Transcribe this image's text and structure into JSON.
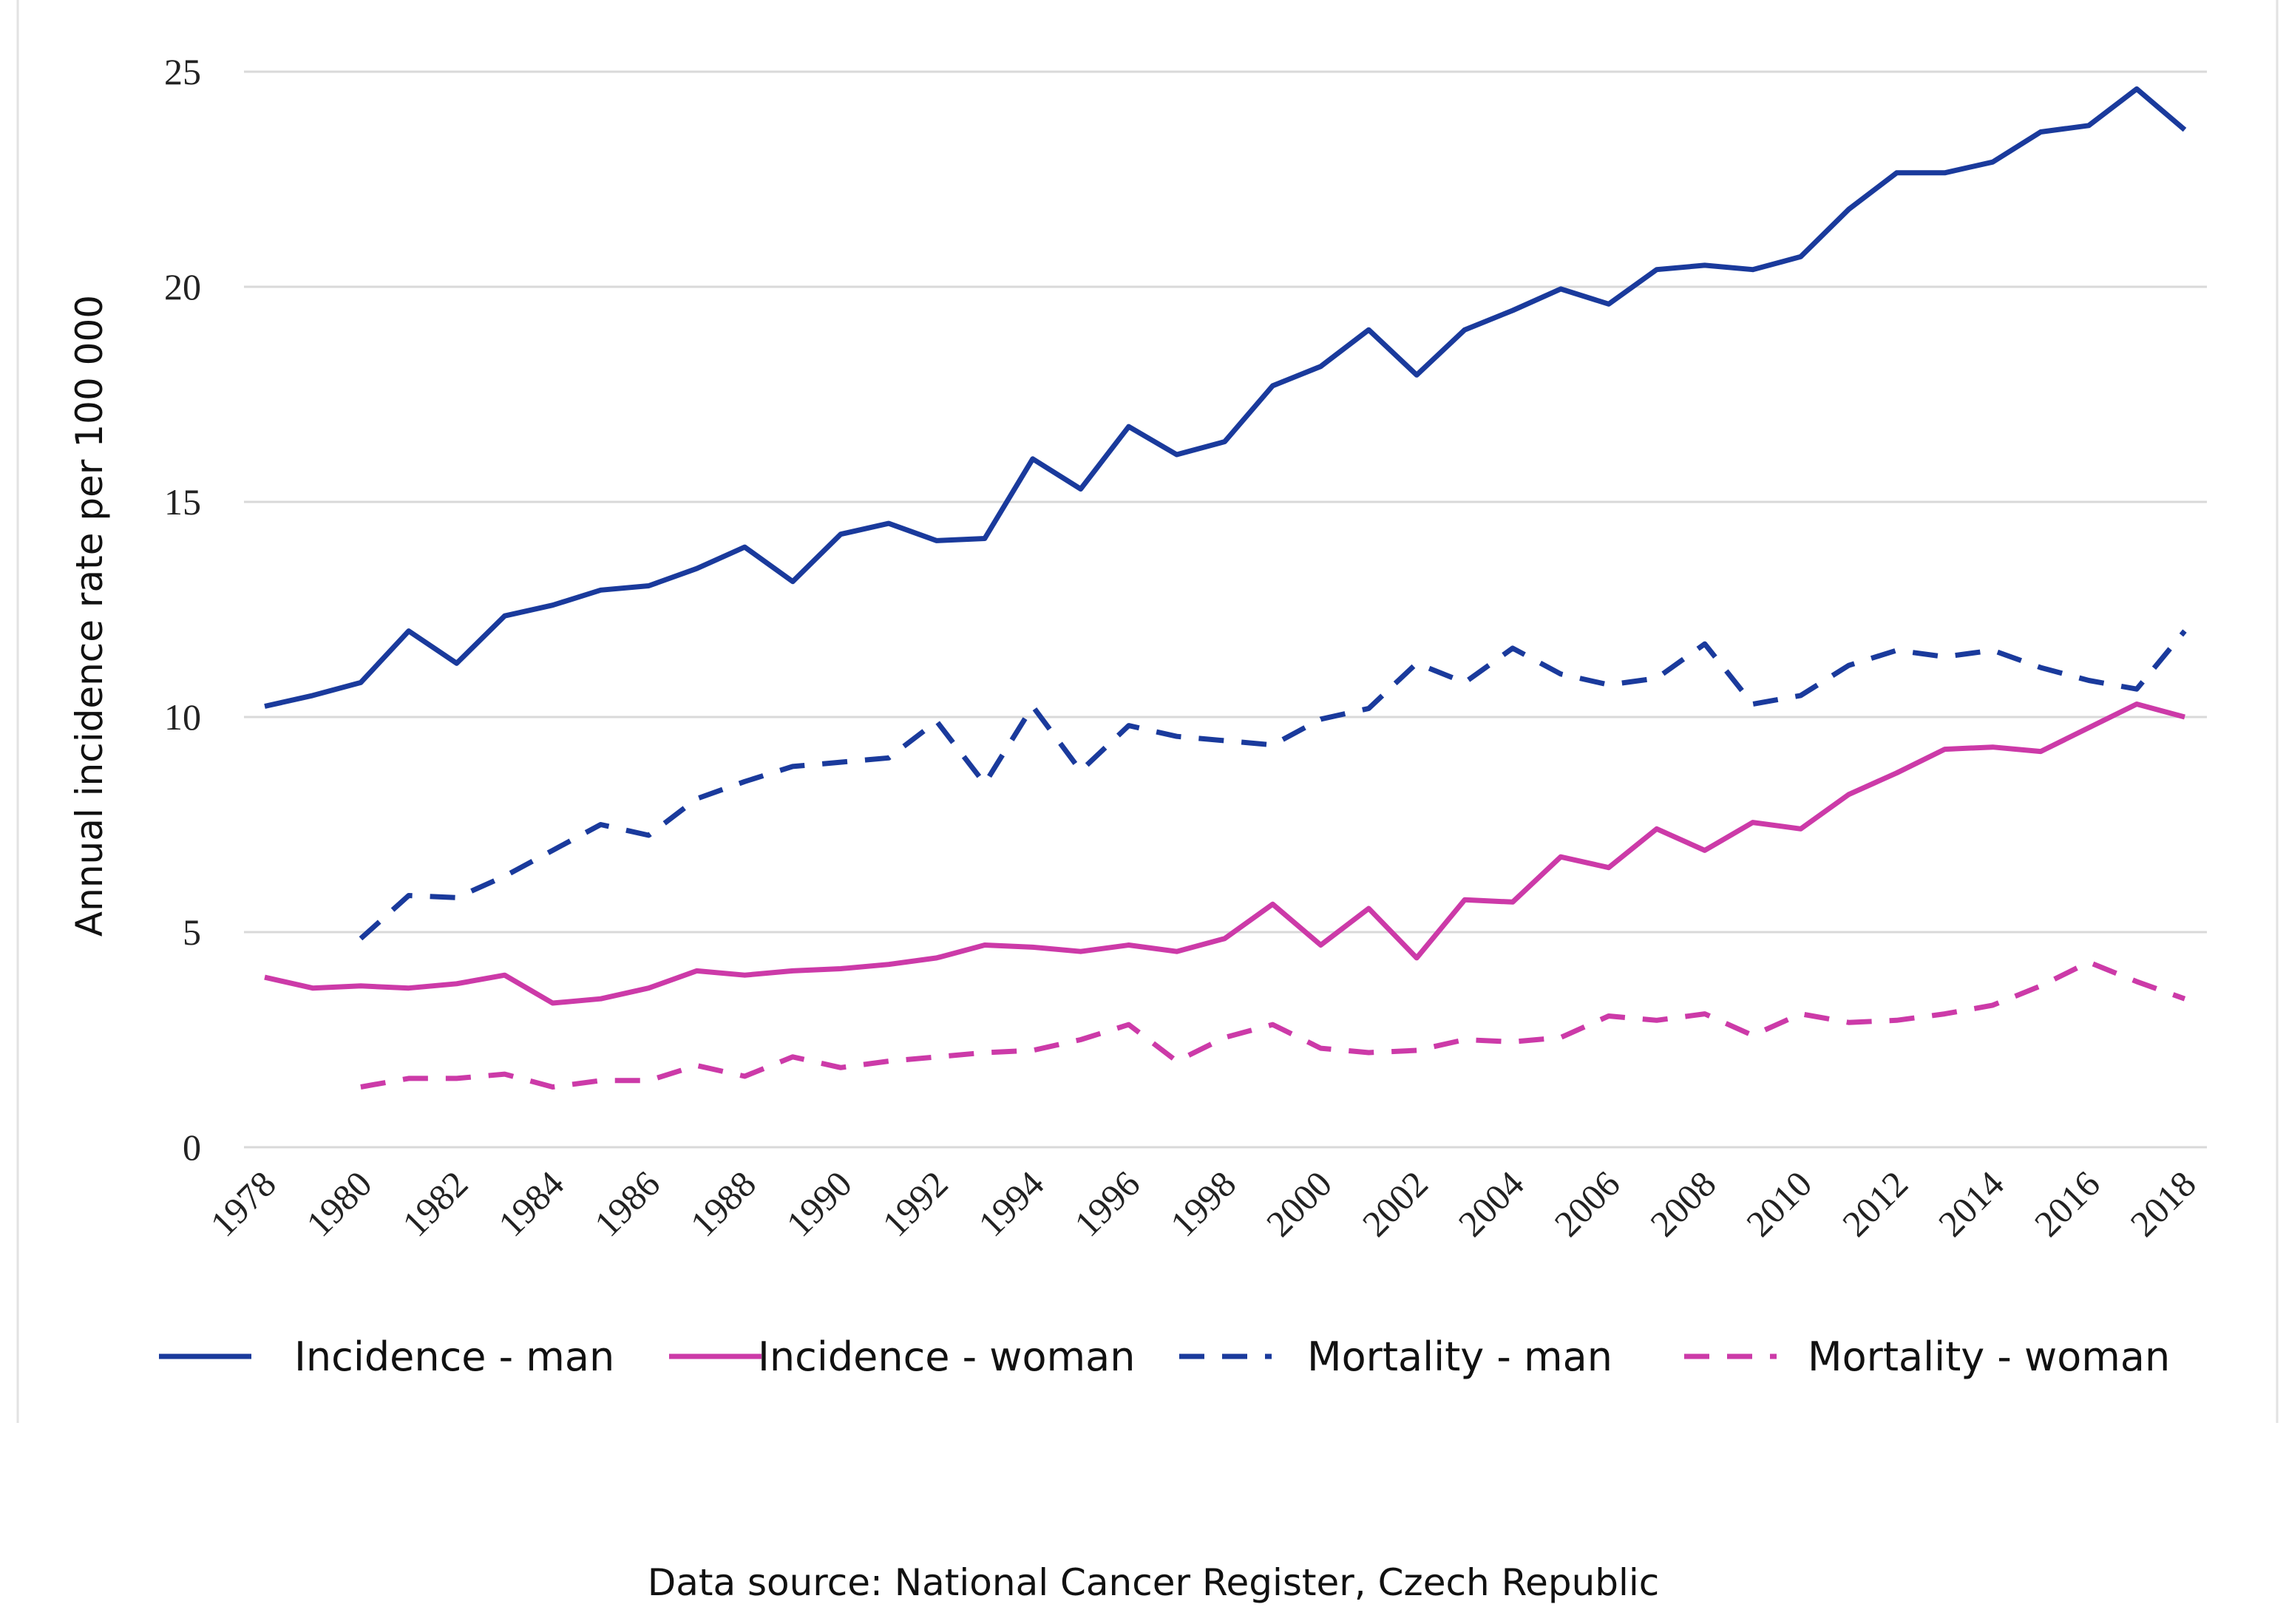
{
  "chart_data": {
    "type": "line",
    "title": "",
    "xlabel": "",
    "ylabel": "Annual incidence rate per 100 000",
    "ylim": [
      0,
      25
    ],
    "yticks": [
      0,
      5,
      10,
      15,
      20,
      25
    ],
    "xlim": [
      1978,
      2018
    ],
    "xticks": [
      "1978",
      "1980",
      "1982",
      "1984",
      "1986",
      "1988",
      "1990",
      "1992",
      "1994",
      "1996",
      "1998",
      "2000",
      "2002",
      "2004",
      "2006",
      "2008",
      "2010",
      "2012",
      "2014",
      "2016",
      "2018"
    ],
    "grid": true,
    "legend_position": "bottom",
    "x": [
      1978,
      1979,
      1980,
      1981,
      1982,
      1983,
      1984,
      1985,
      1986,
      1987,
      1988,
      1989,
      1990,
      1991,
      1992,
      1993,
      1994,
      1995,
      1996,
      1997,
      1998,
      1999,
      2000,
      2001,
      2002,
      2003,
      2004,
      2005,
      2006,
      2007,
      2008,
      2009,
      2010,
      2011,
      2012,
      2013,
      2014,
      2015,
      2016,
      2017,
      2018
    ],
    "series": [
      {
        "name": "Incidence - man",
        "color": "#1a3a9c",
        "dash": "solid",
        "values": [
          10.25,
          10.5,
          10.8,
          12.0,
          11.25,
          12.35,
          12.6,
          12.95,
          13.05,
          13.45,
          13.95,
          13.15,
          14.25,
          14.5,
          14.1,
          14.15,
          16.0,
          15.3,
          16.75,
          16.1,
          16.4,
          17.7,
          18.15,
          19.0,
          17.95,
          19.0,
          19.45,
          19.95,
          19.6,
          20.4,
          20.5,
          20.4,
          20.7,
          21.8,
          22.65,
          22.65,
          22.9,
          23.6,
          23.75,
          24.6,
          23.65
        ]
      },
      {
        "name": "Incidence - woman",
        "color": "#cc3aa8",
        "dash": "solid",
        "values": [
          3.95,
          3.7,
          3.75,
          3.7,
          3.8,
          4.0,
          3.35,
          3.45,
          3.7,
          4.1,
          4.0,
          4.1,
          4.15,
          4.25,
          4.4,
          4.7,
          4.65,
          4.55,
          4.7,
          4.55,
          4.85,
          5.65,
          4.7,
          5.55,
          4.4,
          5.75,
          5.7,
          6.75,
          6.5,
          7.4,
          6.9,
          7.55,
          7.4,
          8.2,
          8.7,
          9.25,
          9.3,
          9.2,
          9.75,
          10.3,
          10.0
        ]
      },
      {
        "name": "Mortality - man",
        "color": "#1a3a9c",
        "dash": "dashed",
        "values": [
          null,
          null,
          4.85,
          5.85,
          5.8,
          6.3,
          6.9,
          7.5,
          7.25,
          8.1,
          8.5,
          8.85,
          8.95,
          9.05,
          9.9,
          8.45,
          10.25,
          8.75,
          9.8,
          9.55,
          9.45,
          9.35,
          9.95,
          10.2,
          11.25,
          10.8,
          11.6,
          11.0,
          10.75,
          10.9,
          11.7,
          10.3,
          10.5,
          11.2,
          11.55,
          11.4,
          11.55,
          11.15,
          10.85,
          10.65,
          12.0
        ]
      },
      {
        "name": "Mortality - woman",
        "color": "#cc3aa8",
        "dash": "dashed",
        "values": [
          null,
          null,
          1.4,
          1.6,
          1.6,
          1.7,
          1.4,
          1.55,
          1.55,
          1.9,
          1.65,
          2.1,
          1.85,
          2.0,
          2.1,
          2.2,
          2.25,
          2.5,
          2.85,
          2.0,
          2.55,
          2.85,
          2.3,
          2.2,
          2.25,
          2.5,
          2.45,
          2.55,
          3.05,
          2.95,
          3.1,
          2.6,
          3.1,
          2.9,
          2.95,
          3.1,
          3.3,
          3.75,
          4.3,
          3.85,
          3.45
        ]
      }
    ],
    "annotation": "Data source: National Cancer Register, Czech Republic"
  }
}
